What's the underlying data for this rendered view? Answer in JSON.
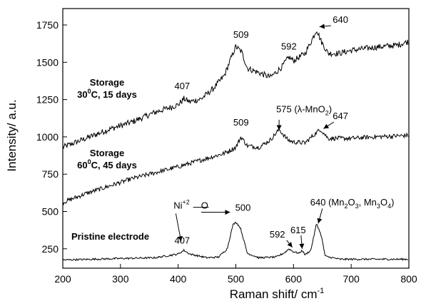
{
  "chart_data": {
    "type": "line",
    "xlabel": "Raman shift/ cm",
    "xlabel_sup": "-1",
    "ylabel": "Intensity/ a.u.",
    "xlim": [
      200,
      800
    ],
    "ylim": [
      120,
      1860
    ],
    "xticks": [
      "200",
      "300",
      "400",
      "500",
      "600",
      "700",
      "800"
    ],
    "yticks": [
      "250",
      "500",
      "750",
      "1000",
      "1250",
      "1500",
      "1750"
    ],
    "grid": false,
    "legend": "none",
    "series": [
      {
        "label_lines": [
          "Storage",
          "30",
          "0",
          "C, 15 days"
        ],
        "noise": 20,
        "points": [
          [
            200,
            930
          ],
          [
            240,
            990
          ],
          [
            280,
            1050
          ],
          [
            320,
            1100
          ],
          [
            360,
            1165
          ],
          [
            400,
            1215
          ],
          [
            410,
            1255
          ],
          [
            420,
            1235
          ],
          [
            440,
            1255
          ],
          [
            460,
            1320
          ],
          [
            480,
            1410
          ],
          [
            495,
            1560
          ],
          [
            500,
            1605
          ],
          [
            510,
            1570
          ],
          [
            520,
            1460
          ],
          [
            540,
            1430
          ],
          [
            560,
            1400
          ],
          [
            580,
            1470
          ],
          [
            592,
            1535
          ],
          [
            600,
            1510
          ],
          [
            620,
            1560
          ],
          [
            632,
            1650
          ],
          [
            640,
            1720
          ],
          [
            648,
            1640
          ],
          [
            660,
            1560
          ],
          [
            680,
            1560
          ],
          [
            700,
            1580
          ],
          [
            740,
            1600
          ],
          [
            780,
            1615
          ],
          [
            800,
            1640
          ]
        ],
        "peaks": [
          {
            "label": "407",
            "x": 407,
            "y": 1320
          },
          {
            "label": "509",
            "x": 509,
            "y": 1665
          },
          {
            "label": "592",
            "x": 592,
            "y": 1585
          },
          {
            "label": "640",
            "x": 640,
            "y": 1770
          }
        ]
      },
      {
        "label_lines": [
          "Storage",
          "60",
          "0",
          "C, 45 days"
        ],
        "noise": 15,
        "points": [
          [
            200,
            560
          ],
          [
            240,
            620
          ],
          [
            280,
            670
          ],
          [
            320,
            720
          ],
          [
            360,
            760
          ],
          [
            400,
            800
          ],
          [
            440,
            845
          ],
          [
            480,
            890
          ],
          [
            500,
            930
          ],
          [
            509,
            1000
          ],
          [
            520,
            940
          ],
          [
            540,
            930
          ],
          [
            560,
            980
          ],
          [
            575,
            1050
          ],
          [
            590,
            980
          ],
          [
            600,
            965
          ],
          [
            620,
            960
          ],
          [
            640,
            1030
          ],
          [
            647,
            1050
          ],
          [
            660,
            990
          ],
          [
            700,
            990
          ],
          [
            740,
            1000
          ],
          [
            800,
            1010
          ]
        ],
        "peaks": [
          {
            "label": "509",
            "x": 509,
            "y": 1075
          },
          {
            "label": "575 (λ-MnO",
            "sub": "2",
            "tail": ")",
            "x": 575,
            "y": 1165
          },
          {
            "label": "647",
            "x": 647,
            "y": 1120
          }
        ]
      },
      {
        "label_lines": [
          "Pristine electrode"
        ],
        "noise": 6,
        "points": [
          [
            200,
            175
          ],
          [
            300,
            185
          ],
          [
            360,
            190
          ],
          [
            400,
            215
          ],
          [
            410,
            240
          ],
          [
            420,
            215
          ],
          [
            450,
            190
          ],
          [
            470,
            195
          ],
          [
            485,
            250
          ],
          [
            495,
            410
          ],
          [
            500,
            430
          ],
          [
            508,
            390
          ],
          [
            520,
            220
          ],
          [
            540,
            190
          ],
          [
            570,
            195
          ],
          [
            585,
            225
          ],
          [
            592,
            250
          ],
          [
            600,
            230
          ],
          [
            610,
            220
          ],
          [
            615,
            240
          ],
          [
            620,
            210
          ],
          [
            630,
            240
          ],
          [
            640,
            420
          ],
          [
            648,
            340
          ],
          [
            655,
            200
          ],
          [
            680,
            180
          ],
          [
            740,
            180
          ],
          [
            800,
            180
          ]
        ],
        "peaks": [
          {
            "label": "407",
            "x": 407,
            "y": 285
          },
          {
            "label": "500",
            "x": 500,
            "y": 505
          },
          {
            "label": "592",
            "x": 592,
            "y": 325
          },
          {
            "label": "615",
            "x": 615,
            "y": 355
          },
          {
            "label": "640 (Mn",
            "sub": "2",
            "mid": "O",
            "sub2": "3",
            "mid2": ", Mn",
            "sub3": "3",
            "mid3": "O",
            "sub4": "4",
            "tail": ")",
            "x": 640,
            "y": 540
          }
        ]
      }
    ],
    "annotation": {
      "text": "Ni",
      "sup": "+2",
      "tail": "O"
    }
  }
}
